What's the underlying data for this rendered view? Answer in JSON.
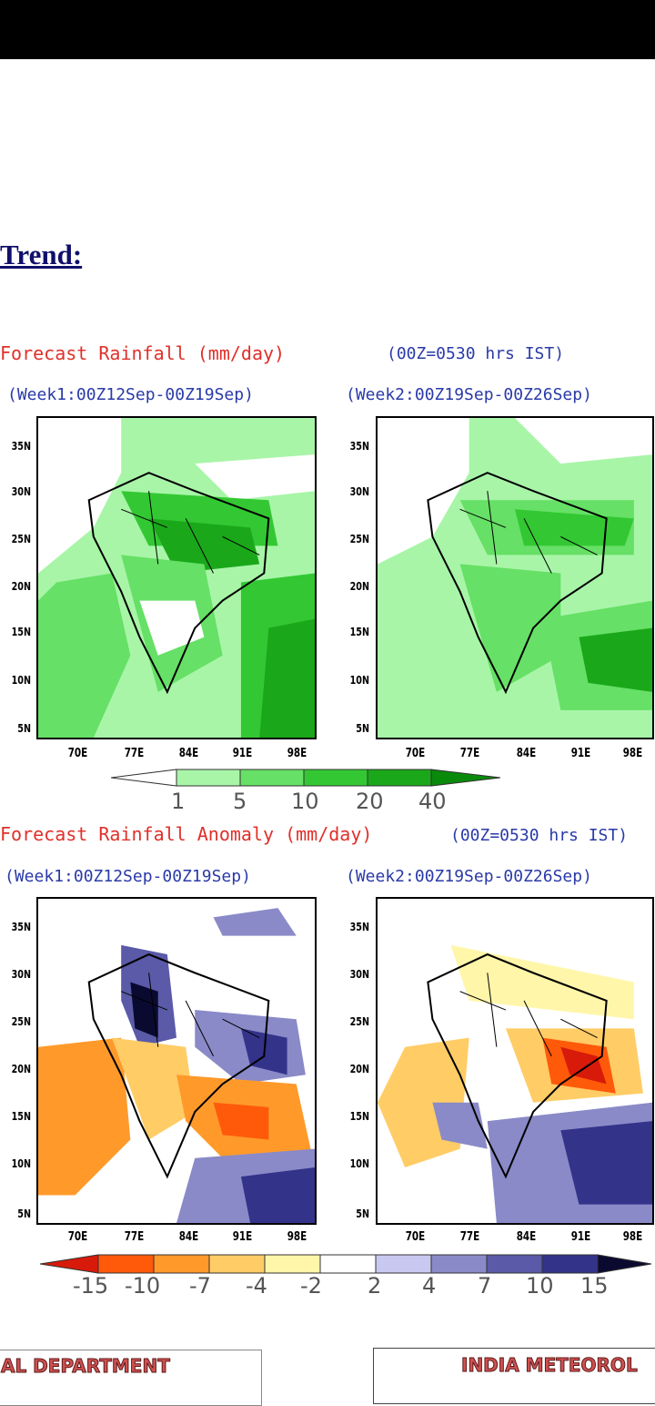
{
  "heading": "Trend:",
  "section1": {
    "title": "Forecast Rainfall (mm/day)",
    "time_note": "(00Z=0530 hrs IST)",
    "week1": "(Week1:00Z12Sep-00Z19Sep)",
    "week2": "(Week2:00Z19Sep-00Z26Sep)",
    "colorbar": {
      "labels": [
        "1",
        "5",
        "10",
        "20",
        "40"
      ],
      "colors": [
        "#ffffff",
        "#a8f5a8",
        "#66e066",
        "#33c833",
        "#1aa81a",
        "#0a8a0a"
      ]
    }
  },
  "section2": {
    "title": "Forecast Rainfall Anomaly (mm/day)",
    "time_note": "(00Z=0530 hrs IST)",
    "week1": "(Week1:00Z12Sep-00Z19Sep)",
    "week2": "(Week2:00Z19Sep-00Z26Sep)",
    "colorbar": {
      "labels": [
        "-15",
        "-10",
        "-7",
        "-4",
        "-2",
        "2",
        "4",
        "7",
        "10",
        "15"
      ],
      "colors": [
        "#d81a0a",
        "#ff5a0a",
        "#ff9a2a",
        "#ffcc66",
        "#fff6aa",
        "#ffffff",
        "#c8c8f0",
        "#8a8ac8",
        "#5a5aa8",
        "#33338a",
        "#0a0a30"
      ]
    }
  },
  "lat_labels": [
    "35N",
    "30N",
    "25N",
    "20N",
    "15N",
    "10N",
    "5N"
  ],
  "lon_labels": [
    "70E",
    "77E",
    "84E",
    "91E",
    "98E"
  ],
  "footer": {
    "left": "AL DEPARTMENT",
    "right": "INDIA METEOROL"
  }
}
